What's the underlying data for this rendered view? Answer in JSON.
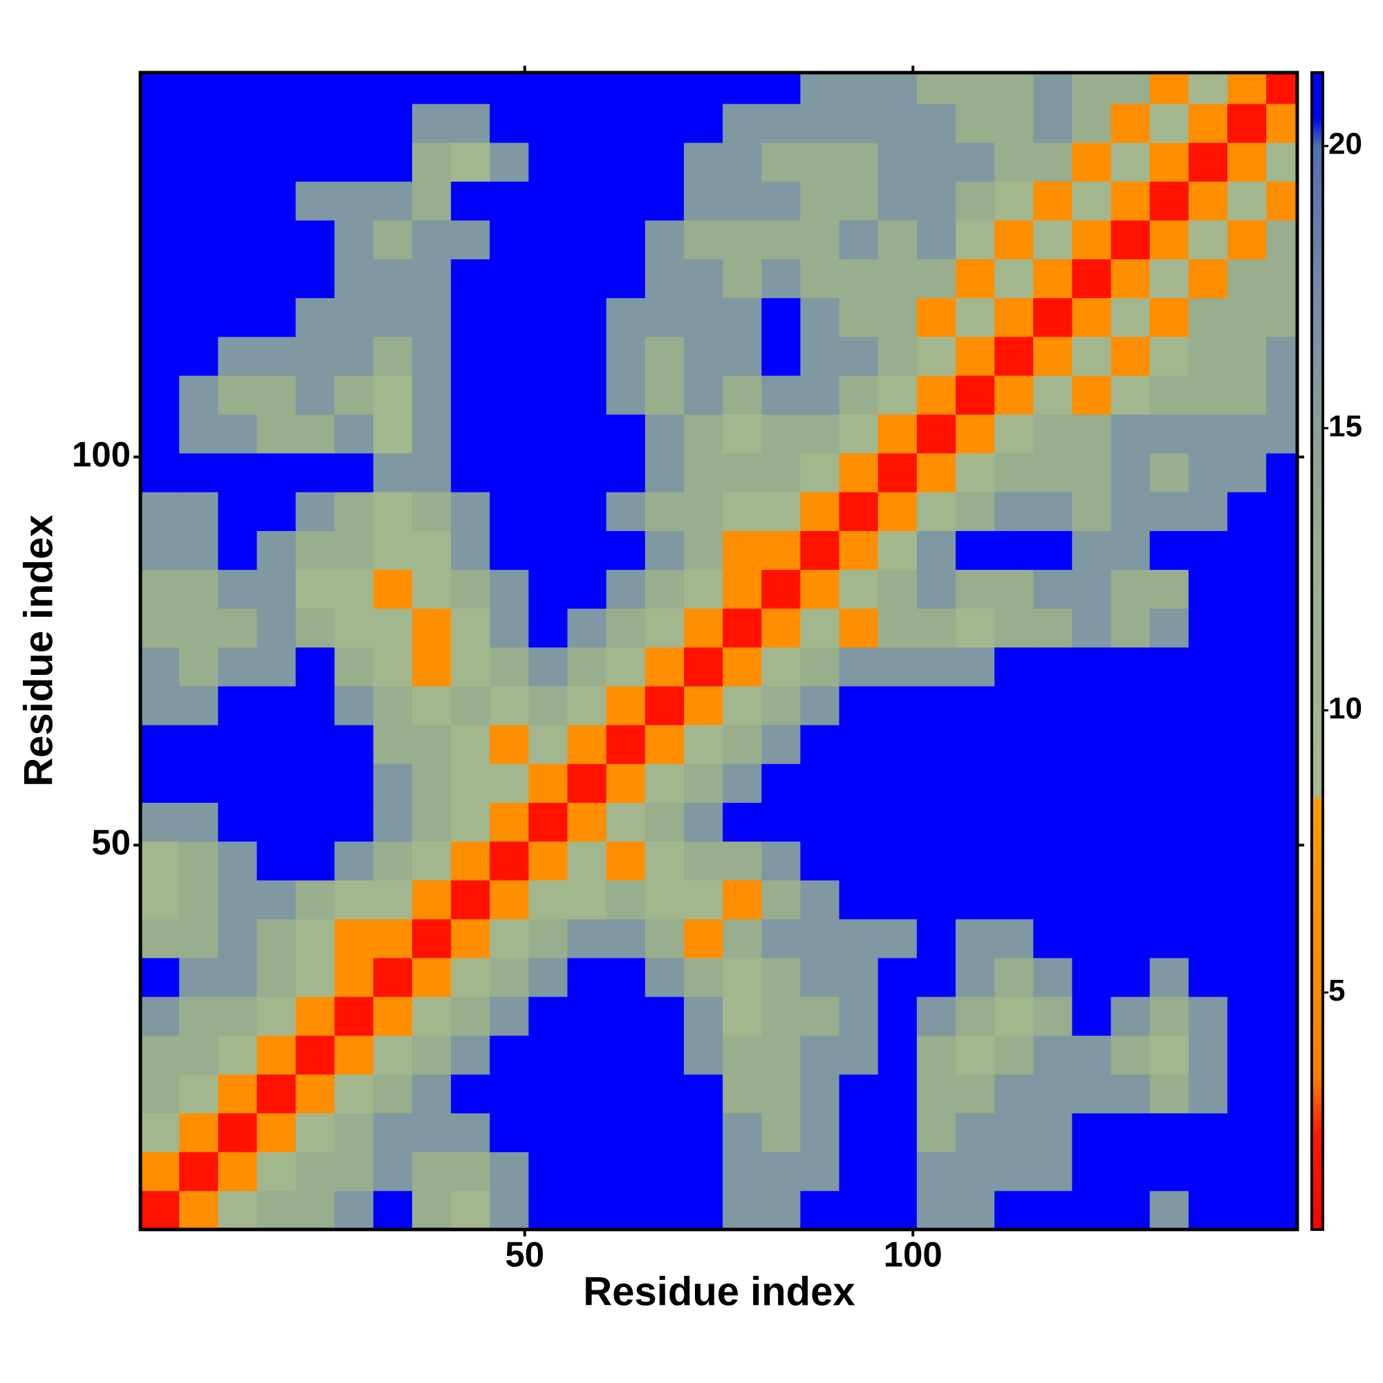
{
  "chart_data": {
    "type": "heatmap",
    "x_label": "Residue index",
    "y_label": "Residue index",
    "xlim": [
      0.5,
      149.5
    ],
    "ylim": [
      0.5,
      149.5
    ],
    "xticks": [
      50,
      100
    ],
    "yticks": [
      50,
      100
    ],
    "xbins": [
      0.5,
      5.5,
      10.5,
      15.5,
      20.5,
      25.5,
      30.5,
      35.5,
      40.5,
      45.5,
      50.5,
      55.5,
      60.5,
      65.5,
      70.5,
      75.5,
      80.5,
      85.5,
      90.5,
      95.5,
      100.5,
      105.5,
      110.5,
      115.5,
      120.5,
      125.5,
      130.5,
      135.5,
      140.5,
      145.5,
      149.5
    ],
    "ybins": [
      0.5,
      5.5,
      10.5,
      15.5,
      20.5,
      25.5,
      30.5,
      35.5,
      40.5,
      45.5,
      50.5,
      55.5,
      60.5,
      65.5,
      70.5,
      75.5,
      80.5,
      85.5,
      90.5,
      95.5,
      100.5,
      105.5,
      110.5,
      115.5,
      120.5,
      125.5,
      130.5,
      135.5,
      140.5,
      145.5,
      149.5
    ],
    "zlim": [
      0.8,
      21.3
    ],
    "zticks": [
      5,
      10,
      15,
      20
    ],
    "colorscale": [
      [
        0.8,
        "#ff0000"
      ],
      [
        2.5,
        "#ff1a00"
      ],
      [
        3.5,
        "#ff8000"
      ],
      [
        8.4,
        "#ff9c00"
      ],
      [
        8.5,
        "#a8bb90"
      ],
      [
        13,
        "#98ae8c"
      ],
      [
        17,
        "#7890a8"
      ],
      [
        20,
        "#5070b0"
      ],
      [
        20.5,
        "#0000ff"
      ],
      [
        21.3,
        "#0000ff"
      ]
    ],
    "z": [
      [
        2,
        6,
        10,
        13,
        13,
        16,
        21,
        13,
        10,
        16,
        21,
        21,
        21,
        21,
        21,
        16,
        16,
        21,
        21,
        21,
        16,
        16,
        21,
        21,
        21,
        21,
        16,
        21,
        21,
        21
      ],
      [
        6,
        2,
        6,
        10,
        13,
        13,
        16,
        13,
        13,
        16,
        21,
        21,
        21,
        21,
        21,
        16,
        16,
        16,
        21,
        21,
        16,
        16,
        16,
        16,
        21,
        21,
        21,
        21,
        21,
        21
      ],
      [
        10,
        6,
        2,
        6,
        10,
        13,
        16,
        16,
        16,
        21,
        21,
        21,
        21,
        21,
        21,
        16,
        13,
        16,
        21,
        21,
        13,
        16,
        16,
        16,
        21,
        21,
        21,
        21,
        21,
        21
      ],
      [
        13,
        10,
        6,
        2,
        6,
        10,
        13,
        16,
        21,
        21,
        21,
        21,
        21,
        21,
        21,
        13,
        13,
        16,
        21,
        21,
        13,
        13,
        16,
        16,
        16,
        16,
        13,
        16,
        21,
        21
      ],
      [
        13,
        13,
        10,
        6,
        2,
        6,
        10,
        13,
        16,
        21,
        21,
        21,
        21,
        21,
        16,
        13,
        13,
        16,
        16,
        21,
        13,
        10,
        13,
        16,
        16,
        13,
        10,
        16,
        21,
        21
      ],
      [
        16,
        13,
        13,
        10,
        6,
        2,
        6,
        10,
        13,
        16,
        21,
        21,
        21,
        21,
        16,
        10,
        13,
        13,
        16,
        21,
        16,
        13,
        10,
        13,
        21,
        16,
        13,
        16,
        21,
        21
      ],
      [
        21,
        16,
        16,
        13,
        10,
        6,
        2,
        6,
        10,
        13,
        16,
        21,
        21,
        16,
        13,
        10,
        13,
        16,
        16,
        21,
        21,
        16,
        13,
        16,
        21,
        21,
        16,
        21,
        21,
        21
      ],
      [
        13,
        13,
        16,
        13,
        10,
        6,
        6,
        2,
        6,
        10,
        13,
        16,
        16,
        13,
        6,
        13,
        16,
        16,
        16,
        16,
        21,
        16,
        16,
        21,
        21,
        21,
        21,
        21,
        21,
        21
      ],
      [
        10,
        13,
        16,
        16,
        13,
        10,
        10,
        6,
        2,
        6,
        10,
        10,
        13,
        10,
        10,
        6,
        13,
        16,
        21,
        21,
        21,
        21,
        21,
        21,
        21,
        21,
        21,
        21,
        21,
        21
      ],
      [
        10,
        13,
        16,
        21,
        21,
        16,
        13,
        10,
        6,
        2,
        6,
        10,
        6,
        10,
        13,
        13,
        16,
        21,
        21,
        21,
        21,
        21,
        21,
        21,
        21,
        21,
        21,
        21,
        21,
        21
      ],
      [
        16,
        16,
        21,
        21,
        21,
        21,
        16,
        13,
        10,
        6,
        2,
        6,
        10,
        13,
        16,
        21,
        21,
        21,
        21,
        21,
        21,
        21,
        21,
        21,
        21,
        21,
        21,
        21,
        21,
        21
      ],
      [
        21,
        21,
        21,
        21,
        21,
        21,
        16,
        13,
        10,
        10,
        6,
        2,
        6,
        10,
        13,
        16,
        21,
        21,
        21,
        21,
        21,
        21,
        21,
        21,
        21,
        21,
        21,
        21,
        21,
        21
      ],
      [
        21,
        21,
        21,
        21,
        21,
        21,
        13,
        13,
        10,
        6,
        10,
        6,
        2,
        6,
        10,
        13,
        16,
        21,
        21,
        21,
        21,
        21,
        21,
        21,
        21,
        21,
        21,
        21,
        21,
        21
      ],
      [
        16,
        16,
        21,
        21,
        21,
        16,
        13,
        10,
        13,
        10,
        13,
        10,
        6,
        2,
        6,
        10,
        13,
        16,
        21,
        21,
        21,
        21,
        21,
        21,
        21,
        21,
        21,
        21,
        21,
        21
      ],
      [
        16,
        13,
        16,
        16,
        21,
        13,
        10,
        6,
        10,
        13,
        16,
        13,
        10,
        6,
        2,
        6,
        10,
        13,
        16,
        16,
        16,
        16,
        21,
        21,
        21,
        21,
        21,
        21,
        21,
        21
      ],
      [
        13,
        13,
        13,
        16,
        13,
        10,
        10,
        6,
        10,
        16,
        21,
        16,
        13,
        10,
        6,
        2,
        6,
        10,
        6,
        13,
        13,
        10,
        13,
        13,
        16,
        13,
        16,
        21,
        21,
        21
      ],
      [
        13,
        13,
        16,
        16,
        10,
        10,
        6,
        10,
        13,
        16,
        21,
        21,
        16,
        13,
        10,
        6,
        2,
        6,
        10,
        13,
        16,
        13,
        13,
        16,
        16,
        13,
        13,
        21,
        21,
        21
      ],
      [
        16,
        16,
        21,
        16,
        13,
        13,
        10,
        10,
        16,
        21,
        21,
        21,
        21,
        16,
        13,
        6,
        6,
        2,
        6,
        10,
        16,
        21,
        21,
        21,
        16,
        16,
        21,
        21,
        21,
        21
      ],
      [
        16,
        16,
        21,
        21,
        16,
        13,
        10,
        13,
        16,
        21,
        21,
        21,
        16,
        13,
        13,
        10,
        10,
        6,
        2,
        6,
        10,
        13,
        16,
        16,
        13,
        16,
        16,
        16,
        21,
        21
      ],
      [
        21,
        21,
        21,
        21,
        21,
        21,
        16,
        16,
        21,
        21,
        21,
        21,
        21,
        16,
        13,
        13,
        13,
        10,
        6,
        2,
        6,
        10,
        13,
        13,
        13,
        16,
        13,
        16,
        16,
        21
      ],
      [
        21,
        16,
        16,
        13,
        13,
        16,
        10,
        16,
        21,
        21,
        21,
        21,
        21,
        16,
        13,
        10,
        13,
        13,
        10,
        6,
        2,
        6,
        10,
        13,
        13,
        16,
        16,
        16,
        16,
        16
      ],
      [
        21,
        16,
        13,
        13,
        16,
        13,
        10,
        16,
        21,
        21,
        21,
        21,
        16,
        13,
        16,
        13,
        16,
        16,
        13,
        10,
        6,
        2,
        6,
        10,
        6,
        10,
        13,
        13,
        13,
        16
      ],
      [
        21,
        21,
        16,
        16,
        16,
        16,
        13,
        16,
        21,
        21,
        21,
        21,
        16,
        13,
        16,
        16,
        21,
        16,
        16,
        13,
        10,
        6,
        2,
        6,
        10,
        6,
        10,
        13,
        13,
        16
      ],
      [
        21,
        21,
        21,
        21,
        16,
        16,
        16,
        16,
        21,
        21,
        21,
        21,
        16,
        16,
        16,
        16,
        21,
        16,
        13,
        13,
        6,
        10,
        6,
        2,
        6,
        10,
        6,
        13,
        13,
        13
      ],
      [
        21,
        21,
        21,
        21,
        21,
        16,
        16,
        16,
        21,
        21,
        21,
        21,
        21,
        16,
        16,
        13,
        16,
        13,
        13,
        13,
        13,
        6,
        10,
        6,
        2,
        6,
        10,
        6,
        13,
        13
      ],
      [
        21,
        21,
        21,
        21,
        21,
        16,
        13,
        16,
        16,
        21,
        21,
        21,
        21,
        16,
        13,
        13,
        13,
        13,
        16,
        13,
        16,
        10,
        6,
        10,
        6,
        2,
        6,
        10,
        6,
        13
      ],
      [
        21,
        21,
        21,
        21,
        16,
        16,
        16,
        13,
        21,
        21,
        21,
        21,
        21,
        21,
        16,
        16,
        16,
        13,
        13,
        16,
        16,
        13,
        10,
        6,
        10,
        6,
        2,
        6,
        10,
        6
      ],
      [
        21,
        21,
        21,
        21,
        21,
        21,
        21,
        13,
        10,
        16,
        21,
        21,
        21,
        21,
        16,
        16,
        13,
        13,
        13,
        16,
        16,
        16,
        13,
        13,
        6,
        10,
        6,
        2,
        6,
        10
      ],
      [
        21,
        21,
        21,
        21,
        21,
        21,
        21,
        16,
        16,
        21,
        21,
        21,
        21,
        21,
        21,
        16,
        16,
        16,
        16,
        16,
        16,
        13,
        13,
        16,
        13,
        6,
        10,
        6,
        2,
        6
      ],
      [
        21,
        21,
        21,
        21,
        21,
        21,
        21,
        21,
        21,
        21,
        21,
        21,
        21,
        21,
        21,
        21,
        21,
        16,
        16,
        16,
        13,
        13,
        13,
        16,
        13,
        13,
        6,
        10,
        6,
        2
      ]
    ]
  }
}
